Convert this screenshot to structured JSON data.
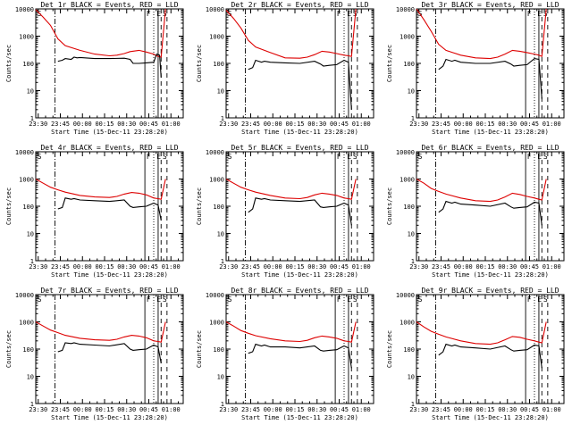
{
  "colors": {
    "events": "#000000",
    "lld": "#dd0000",
    "background": "#ffffff",
    "axes": "#000000"
  },
  "chart_data": [
    {
      "type": "line",
      "title": "Det 1r BLACK = Events, RED = LLD",
      "xlabel": "Start Time (15-Dec-11 23:28:20)",
      "ylabel": "Counts/sec",
      "xticks": [
        "23:30",
        "23:45",
        "00:00",
        "00:15",
        "00:30",
        "00:45",
        "01:00"
      ],
      "yticks": [
        "1",
        "10",
        "100",
        "1000",
        "10000"
      ],
      "yscale": "log",
      "ylim": [
        1,
        10000
      ],
      "xlim_minutes": [
        0,
        100
      ],
      "flags": [
        "S",
        "F",
        "E",
        "S"
      ],
      "series": [
        {
          "name": "LLD",
          "x": [
            0,
            5,
            10,
            15,
            20,
            30,
            40,
            50,
            55,
            60,
            64,
            70,
            75,
            80,
            81,
            83,
            85,
            88
          ],
          "values": [
            9500,
            5000,
            2500,
            800,
            450,
            300,
            220,
            190,
            200,
            230,
            270,
            300,
            260,
            220,
            200,
            180,
            170,
            10000
          ]
        },
        {
          "name": "Events",
          "x": [
            15,
            18,
            20,
            24,
            26,
            28,
            30,
            40,
            50,
            60,
            64,
            66,
            70,
            75,
            80,
            82,
            84,
            85
          ],
          "values": [
            120,
            130,
            150,
            140,
            170,
            160,
            165,
            150,
            150,
            155,
            140,
            100,
            100,
            105,
            110,
            220,
            200,
            30
          ]
        }
      ]
    },
    {
      "type": "line",
      "title": "Det 2r BLACK = Events, RED = LLD",
      "xlabel": "Start Time (15-Dec-11 23:28:20)",
      "ylabel": "Counts/sec",
      "xticks": [
        "23:30",
        "23:45",
        "00:00",
        "00:15",
        "00:30",
        "00:45",
        "01:00"
      ],
      "yticks": [
        "1",
        "10",
        "100",
        "1000",
        "10000"
      ],
      "yscale": "log",
      "ylim": [
        1,
        10000
      ],
      "xlim_minutes": [
        0,
        100
      ],
      "flags": [
        "S",
        "F",
        "E",
        "S"
      ],
      "series": [
        {
          "name": "LLD",
          "x": [
            0,
            5,
            10,
            15,
            20,
            30,
            40,
            50,
            55,
            60,
            65,
            70,
            75,
            80,
            83,
            85,
            88
          ],
          "values": [
            9000,
            4500,
            2000,
            700,
            400,
            250,
            160,
            155,
            170,
            210,
            280,
            260,
            230,
            200,
            190,
            180,
            10000
          ]
        },
        {
          "name": "Events",
          "x": [
            15,
            18,
            20,
            24,
            26,
            30,
            40,
            50,
            60,
            64,
            66,
            70,
            75,
            80,
            83,
            85
          ],
          "values": [
            60,
            70,
            130,
            110,
            120,
            110,
            105,
            100,
            120,
            95,
            80,
            85,
            90,
            130,
            110,
            2
          ]
        }
      ]
    },
    {
      "type": "line",
      "title": "Det 3r BLACK = Events, RED = LLD",
      "xlabel": "Start Time (15-Dec-11 23:28:20)",
      "ylabel": "Counts/sec",
      "xticks": [
        "23:30",
        "23:45",
        "00:00",
        "00:15",
        "00:30",
        "00:45",
        "01:00"
      ],
      "yticks": [
        "1",
        "10",
        "100",
        "1000",
        "10000"
      ],
      "yscale": "log",
      "ylim": [
        1,
        10000
      ],
      "xlim_minutes": [
        0,
        100
      ],
      "flags": [
        "S",
        "F",
        "E",
        "S"
      ],
      "series": [
        {
          "name": "LLD",
          "x": [
            0,
            5,
            10,
            15,
            20,
            30,
            40,
            50,
            55,
            60,
            65,
            70,
            75,
            80,
            83,
            85,
            88
          ],
          "values": [
            10000,
            4000,
            1500,
            500,
            300,
            200,
            160,
            150,
            170,
            220,
            300,
            280,
            250,
            220,
            200,
            180,
            10000
          ]
        },
        {
          "name": "Events",
          "x": [
            15,
            18,
            20,
            24,
            26,
            30,
            40,
            50,
            60,
            64,
            66,
            70,
            75,
            80,
            83,
            85
          ],
          "values": [
            60,
            80,
            140,
            120,
            130,
            110,
            100,
            100,
            120,
            95,
            80,
            85,
            90,
            150,
            140,
            5
          ]
        }
      ]
    },
    {
      "type": "line",
      "title": "Det 4r BLACK = Events, RED = LLD",
      "xlabel": "Start Time (15-Dec-11 23:28:20)",
      "ylabel": "Counts/sec",
      "xticks": [
        "23:30",
        "23:45",
        "00:00",
        "00:15",
        "00:30",
        "00:45",
        "01:00"
      ],
      "yticks": [
        "1",
        "10",
        "100",
        "1000",
        "10000"
      ],
      "yscale": "log",
      "ylim": [
        1,
        10000
      ],
      "xlim_minutes": [
        0,
        100
      ],
      "flags": [
        "S",
        "F",
        "E",
        "S"
      ],
      "series": [
        {
          "name": "LLD",
          "x": [
            0,
            5,
            10,
            15,
            20,
            30,
            40,
            50,
            55,
            60,
            65,
            70,
            75,
            80,
            83,
            85,
            88
          ],
          "values": [
            1000,
            700,
            500,
            400,
            330,
            250,
            220,
            210,
            230,
            280,
            320,
            300,
            260,
            200,
            190,
            180,
            1000
          ]
        },
        {
          "name": "Events",
          "x": [
            15,
            18,
            20,
            24,
            26,
            30,
            40,
            50,
            60,
            64,
            66,
            70,
            75,
            80,
            83,
            85
          ],
          "values": [
            80,
            90,
            200,
            180,
            190,
            170,
            160,
            150,
            170,
            100,
            90,
            95,
            100,
            130,
            110,
            30
          ]
        }
      ]
    },
    {
      "type": "line",
      "title": "Det 5r BLACK = Events, RED = LLD",
      "xlabel": "Start Time (15-Dec-11 23:28:20)",
      "ylabel": "Counts/sec",
      "xticks": [
        "23:30",
        "23:45",
        "00:00",
        "00:15",
        "00:30",
        "00:45",
        "01:00"
      ],
      "yticks": [
        "1",
        "10",
        "100",
        "1000",
        "10000"
      ],
      "yscale": "log",
      "ylim": [
        1,
        10000
      ],
      "xlim_minutes": [
        0,
        100
      ],
      "flags": [
        "S",
        "F",
        "E",
        "S"
      ],
      "series": [
        {
          "name": "LLD",
          "x": [
            0,
            5,
            10,
            15,
            20,
            30,
            40,
            50,
            55,
            60,
            65,
            70,
            75,
            80,
            83,
            85,
            88
          ],
          "values": [
            1000,
            700,
            500,
            400,
            330,
            250,
            200,
            190,
            210,
            260,
            300,
            280,
            250,
            200,
            190,
            180,
            1000
          ]
        },
        {
          "name": "Events",
          "x": [
            15,
            18,
            20,
            24,
            26,
            30,
            40,
            50,
            60,
            64,
            66,
            70,
            75,
            80,
            83,
            85
          ],
          "values": [
            60,
            80,
            200,
            180,
            190,
            170,
            160,
            150,
            170,
            95,
            90,
            95,
            100,
            130,
            110,
            20
          ]
        }
      ]
    },
    {
      "type": "line",
      "title": "Det 6r BLACK = Events, RED = LLD",
      "xlabel": "Start Time (15-Dec-11 23:28:20)",
      "ylabel": "Counts/sec",
      "xticks": [
        "23:30",
        "23:45",
        "00:00",
        "00:15",
        "00:30",
        "00:45",
        "01:00"
      ],
      "yticks": [
        "1",
        "10",
        "100",
        "1000",
        "10000"
      ],
      "yscale": "log",
      "ylim": [
        1,
        10000
      ],
      "xlim_minutes": [
        0,
        100
      ],
      "flags": [
        "S",
        "F",
        "E",
        "S"
      ],
      "series": [
        {
          "name": "LLD",
          "x": [
            0,
            5,
            10,
            15,
            20,
            30,
            40,
            50,
            55,
            60,
            65,
            70,
            75,
            80,
            83,
            85,
            88
          ],
          "values": [
            1000,
            700,
            450,
            350,
            280,
            200,
            160,
            150,
            170,
            220,
            300,
            270,
            230,
            200,
            180,
            170,
            1000
          ]
        },
        {
          "name": "Events",
          "x": [
            15,
            18,
            20,
            24,
            26,
            30,
            40,
            50,
            60,
            64,
            66,
            70,
            75,
            80,
            83,
            85
          ],
          "values": [
            60,
            80,
            150,
            130,
            140,
            120,
            110,
            100,
            130,
            95,
            85,
            90,
            95,
            140,
            130,
            20
          ]
        }
      ]
    },
    {
      "type": "line",
      "title": "Det 7r BLACK = Events, RED = LLD",
      "xlabel": "Start Time (15-Dec-11 23:28:20)",
      "ylabel": "Counts/sec",
      "xticks": [
        "23:30",
        "23:45",
        "00:00",
        "00:15",
        "00:30",
        "00:45",
        "01:00"
      ],
      "yticks": [
        "1",
        "10",
        "100",
        "1000",
        "10000"
      ],
      "yscale": "log",
      "ylim": [
        1,
        10000
      ],
      "xlim_minutes": [
        0,
        100
      ],
      "flags": [
        "S",
        "F",
        "E",
        "S"
      ],
      "series": [
        {
          "name": "LLD",
          "x": [
            0,
            5,
            10,
            15,
            20,
            30,
            40,
            50,
            55,
            60,
            65,
            70,
            75,
            80,
            83,
            85,
            88
          ],
          "values": [
            1000,
            700,
            500,
            400,
            320,
            250,
            220,
            210,
            230,
            280,
            320,
            300,
            260,
            200,
            190,
            180,
            1000
          ]
        },
        {
          "name": "Events",
          "x": [
            15,
            18,
            20,
            24,
            26,
            30,
            40,
            50,
            60,
            64,
            66,
            70,
            75,
            80,
            83,
            85
          ],
          "values": [
            80,
            90,
            170,
            160,
            170,
            150,
            140,
            130,
            160,
            100,
            90,
            95,
            100,
            140,
            120,
            30
          ]
        }
      ]
    },
    {
      "type": "line",
      "title": "Det 8r BLACK = Events, RED = LLD",
      "xlabel": "Start Time (15-Dec-11 23:28:20)",
      "ylabel": "Counts/sec",
      "xticks": [
        "23:30",
        "23:45",
        "00:00",
        "00:15",
        "00:30",
        "00:45",
        "01:00"
      ],
      "yticks": [
        "1",
        "10",
        "100",
        "1000",
        "10000"
      ],
      "yscale": "log",
      "ylim": [
        1,
        10000
      ],
      "xlim_minutes": [
        0,
        100
      ],
      "flags": [
        "S",
        "F",
        "E",
        "S"
      ],
      "series": [
        {
          "name": "LLD",
          "x": [
            0,
            5,
            10,
            15,
            20,
            30,
            40,
            50,
            55,
            60,
            65,
            70,
            75,
            80,
            83,
            85,
            88
          ],
          "values": [
            1000,
            700,
            480,
            380,
            310,
            240,
            200,
            190,
            210,
            260,
            300,
            280,
            250,
            200,
            190,
            180,
            1000
          ]
        },
        {
          "name": "Events",
          "x": [
            15,
            18,
            20,
            24,
            26,
            30,
            40,
            50,
            60,
            64,
            66,
            70,
            75,
            80,
            83,
            85
          ],
          "values": [
            70,
            80,
            150,
            130,
            140,
            120,
            120,
            110,
            130,
            90,
            85,
            90,
            95,
            130,
            110,
            20
          ]
        }
      ]
    },
    {
      "type": "line",
      "title": "Det 9r BLACK = Events, RED = LLD",
      "xlabel": "Start Time (15-Dec-11 23:28:20)",
      "ylabel": "Counts/sec",
      "xticks": [
        "23:30",
        "23:45",
        "00:00",
        "00:15",
        "00:30",
        "00:45",
        "01:00"
      ],
      "yticks": [
        "1",
        "10",
        "100",
        "1000",
        "10000"
      ],
      "yscale": "log",
      "ylim": [
        1,
        10000
      ],
      "xlim_minutes": [
        0,
        100
      ],
      "flags": [
        "S",
        "F",
        "E",
        "S"
      ],
      "series": [
        {
          "name": "LLD",
          "x": [
            0,
            5,
            10,
            15,
            20,
            30,
            40,
            50,
            55,
            60,
            65,
            70,
            75,
            80,
            83,
            85,
            88
          ],
          "values": [
            1000,
            650,
            450,
            350,
            280,
            200,
            160,
            150,
            170,
            220,
            290,
            270,
            230,
            200,
            180,
            170,
            1000
          ]
        },
        {
          "name": "Events",
          "x": [
            15,
            18,
            20,
            24,
            26,
            30,
            40,
            50,
            60,
            64,
            66,
            70,
            75,
            80,
            83,
            85
          ],
          "values": [
            60,
            80,
            150,
            130,
            140,
            120,
            110,
            100,
            130,
            95,
            85,
            90,
            95,
            140,
            130,
            20
          ]
        }
      ]
    }
  ]
}
